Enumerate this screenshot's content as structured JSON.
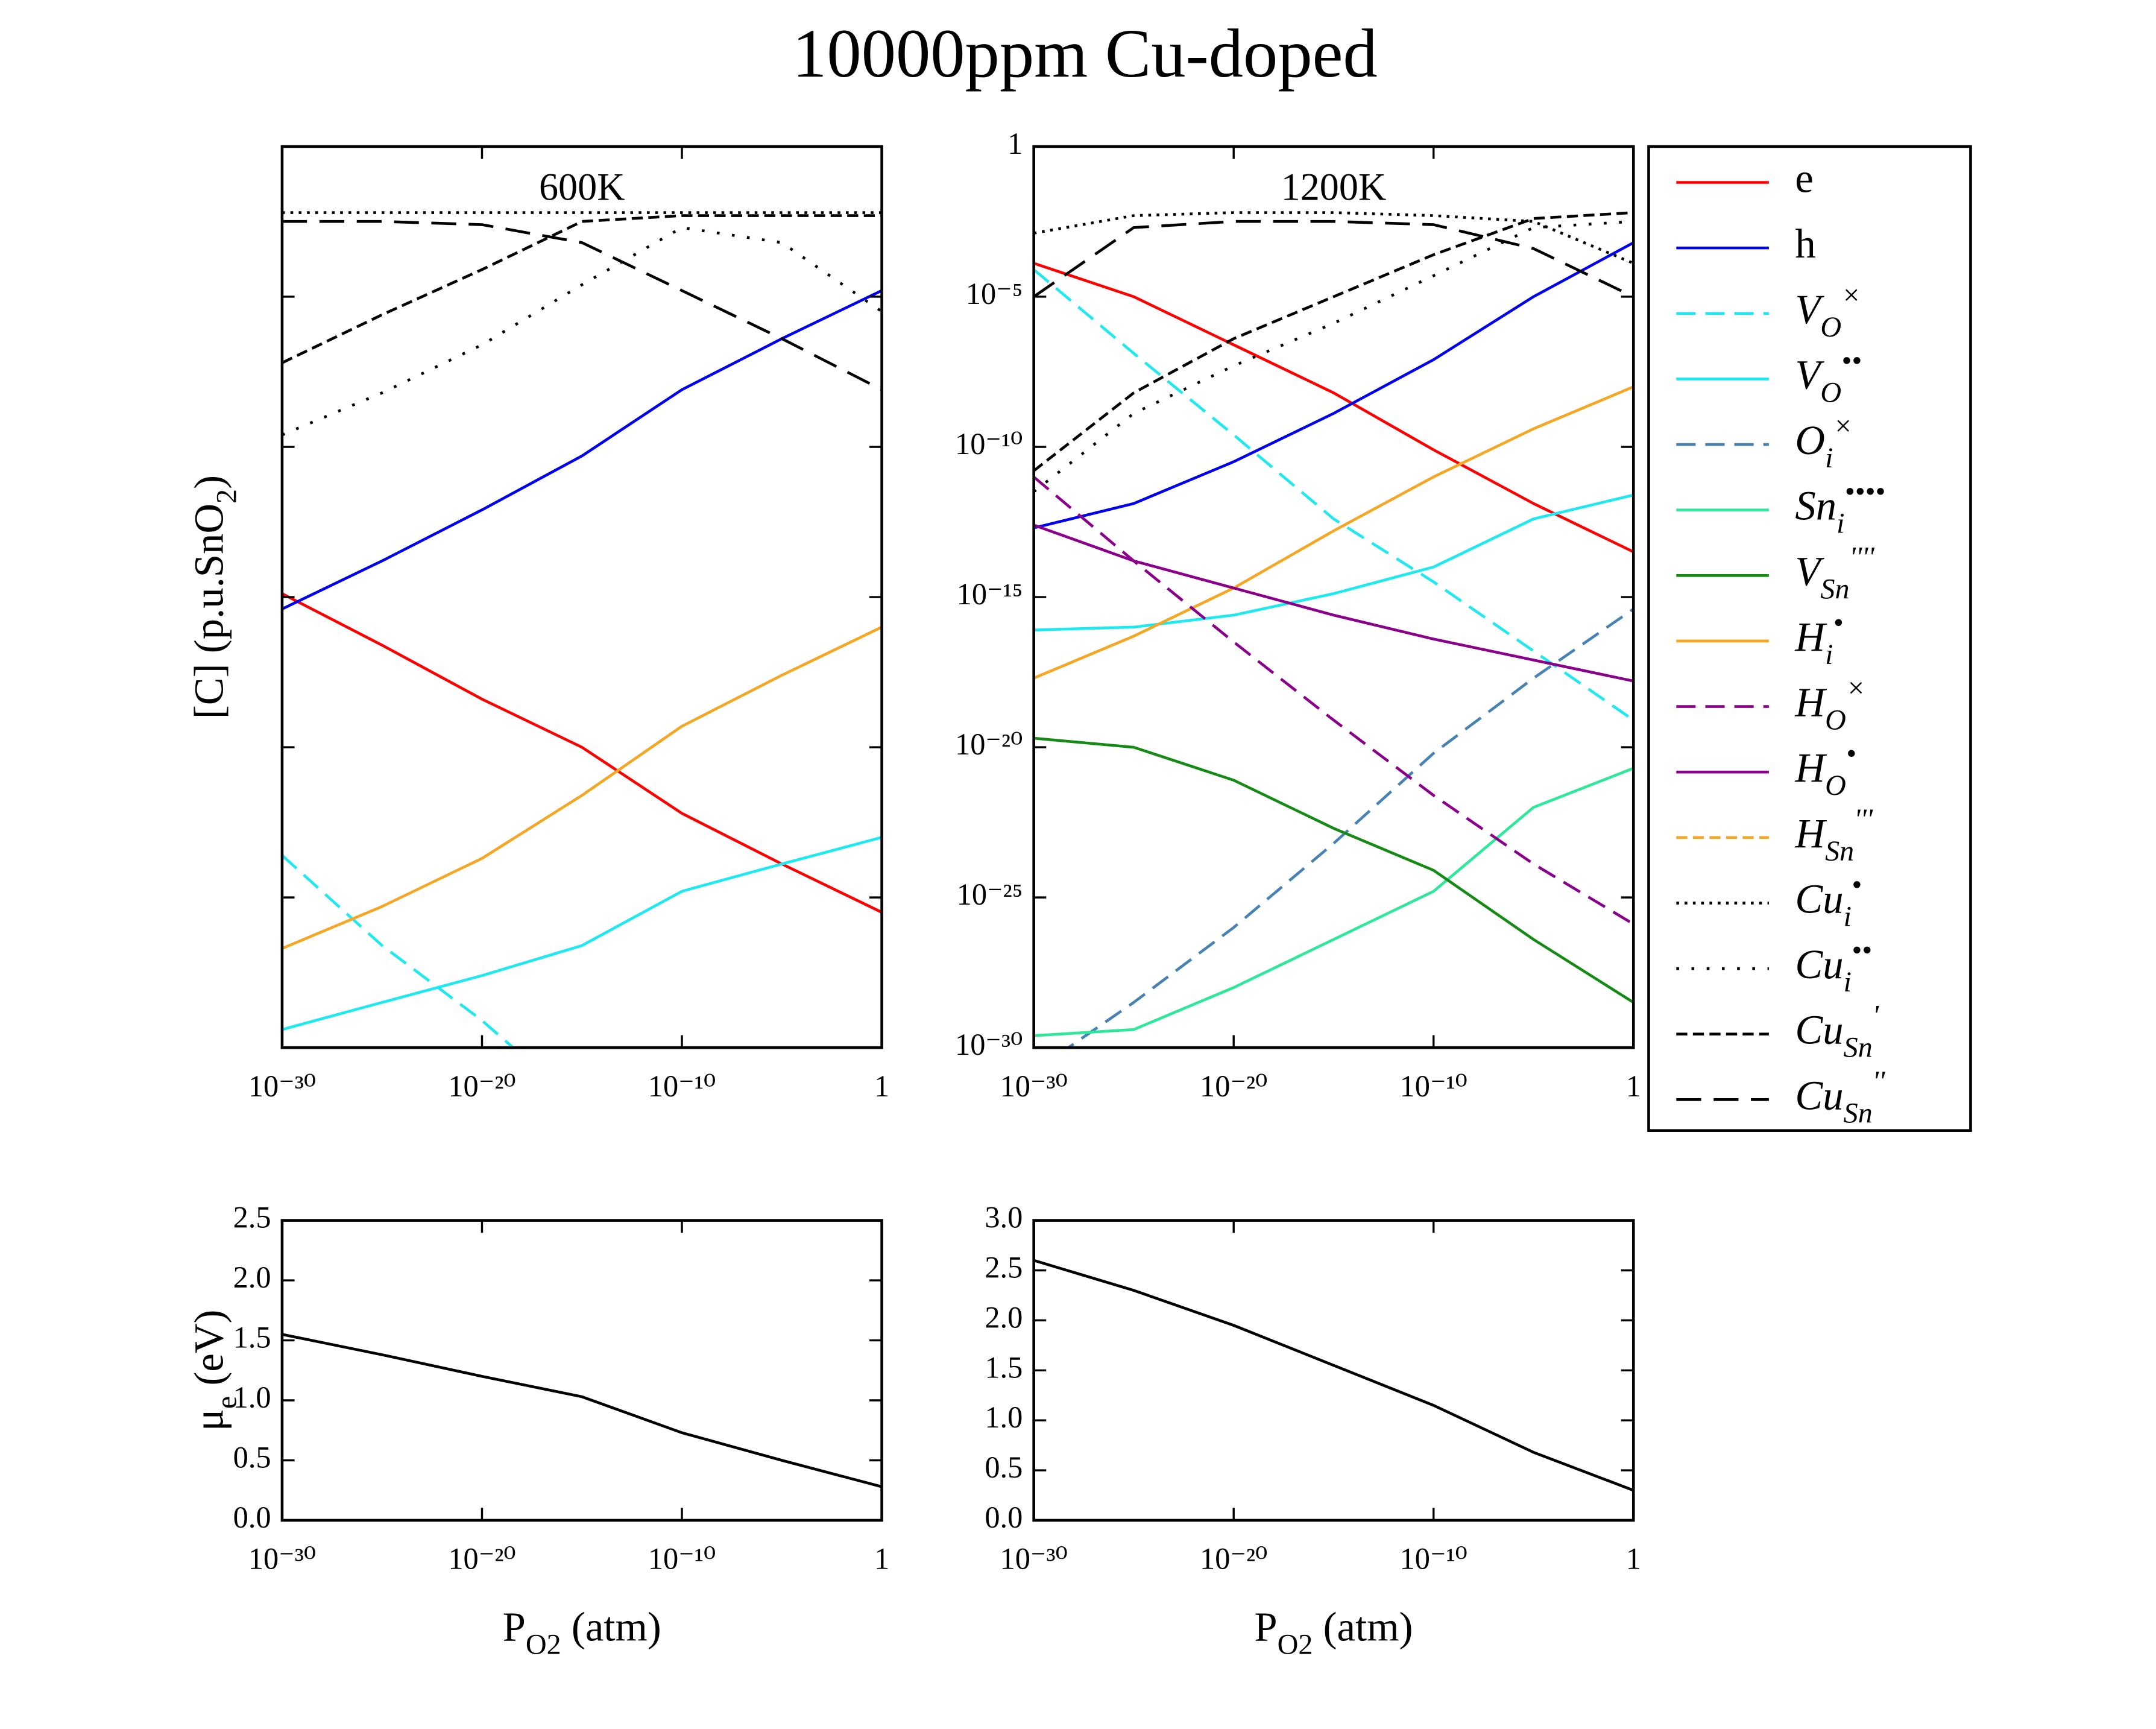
{
  "title": "10000ppm Cu-doped",
  "chart_data": [
    {
      "type": "line",
      "annotation": "600K",
      "ylabel": "[C] (p.u.SnO_{2})",
      "log_x": true,
      "log_y": true,
      "ytick_labels": false,
      "x": [
        1e-30,
        1e-25,
        1e-20,
        1e-15,
        1e-10,
        1e-05,
        1
      ],
      "xlim": [
        1e-30,
        1
      ],
      "xticks": [
        {
          "value": 1e-30,
          "label": "10⁻³⁰"
        },
        {
          "value": 1e-20,
          "label": "10⁻²⁰"
        },
        {
          "value": 1e-10,
          "label": "10⁻¹⁰"
        },
        1
      ],
      "ylim": [
        1e-30,
        1
      ],
      "yticks": [
        1e-30,
        1e-25,
        1e-20,
        1e-15,
        1e-10,
        1e-05,
        1
      ],
      "series": [
        {
          "color": "#ff0000",
          "linestyle": "solid",
          "values": [
            1.3e-15,
            2.5e-17,
            4e-19,
            1e-20,
            6.3e-23,
            1.3e-24,
            3.2e-26
          ]
        },
        {
          "color": "#0000ee",
          "linestyle": "solid",
          "values": [
            4e-16,
            1.6e-14,
            8e-13,
            5e-11,
            8e-09,
            4e-07,
            1.6e-05
          ]
        },
        {
          "color": "#1ee8f0",
          "linestyle": "dashed",
          "values": [
            2.5e-24,
            2.5e-27,
            8e-30,
            1e-32,
            null,
            null,
            null
          ]
        },
        {
          "color": "#1ee8f0",
          "linestyle": "solid",
          "values": [
            4e-30,
            3.2e-29,
            2.5e-28,
            2.5e-27,
            1.6e-25,
            1.3e-24,
            1e-23
          ]
        },
        {
          "color": "#f5a623",
          "linestyle": "solid",
          "values": [
            2e-27,
            5e-26,
            2e-24,
            2.5e-22,
            5e-20,
            2.5e-18,
            1e-16
          ]
        },
        {
          "color": "#000000",
          "linestyle": "dotted",
          "values": [
            0.0063,
            0.0063,
            0.0063,
            0.0063,
            0.0063,
            0.0063,
            0.0063
          ]
        },
        {
          "color": "#000000",
          "linestyle": "sparse-dotted",
          "values": [
            2.5e-10,
            6.3e-09,
            2.5e-07,
            2.5e-05,
            0.002,
            0.00063,
            3.2e-06
          ]
        },
        {
          "color": "#000000",
          "linestyle": "densely-dashed",
          "values": [
            6.3e-08,
            2.5e-06,
            8e-05,
            0.0032,
            0.005,
            0.005,
            0.005
          ]
        },
        {
          "color": "#000000",
          "linestyle": "loosely-dashed",
          "values": [
            0.0032,
            0.0032,
            0.0025,
            0.00063,
            1.6e-05,
            4e-07,
            8e-09
          ]
        }
      ]
    },
    {
      "type": "line",
      "annotation": "1200K",
      "log_x": true,
      "log_y": true,
      "legend": "outside-right",
      "x": [
        1e-30,
        1e-25,
        1e-20,
        1e-15,
        1e-10,
        1e-05,
        1
      ],
      "xlim": [
        1e-30,
        1
      ],
      "xticks": [
        {
          "value": 1e-30,
          "label": "10⁻³⁰"
        },
        {
          "value": 1e-20,
          "label": "10⁻²⁰"
        },
        {
          "value": 1e-10,
          "label": "10⁻¹⁰"
        },
        1
      ],
      "ylim": [
        1e-30,
        1
      ],
      "yticks": [
        {
          "value": 1e-30,
          "label": "10⁻³⁰"
        },
        {
          "value": 1e-25,
          "label": "10⁻²⁵"
        },
        {
          "value": 1e-20,
          "label": "10⁻²⁰"
        },
        {
          "value": 1e-15,
          "label": "10⁻¹⁵"
        },
        {
          "value": 1e-10,
          "label": "10⁻¹⁰"
        },
        {
          "value": 1e-05,
          "label": "10⁻⁵"
        },
        1
      ],
      "series": [
        {
          "name": "e",
          "color": "#ff0000",
          "linestyle": "solid",
          "values": [
            0.00013,
            1e-05,
            2.5e-07,
            6.3e-09,
            8e-11,
            1.3e-12,
            3.2e-14
          ]
        },
        {
          "name": "h",
          "color": "#0000ee",
          "linestyle": "solid",
          "values": [
            2e-13,
            1.3e-12,
            3.2e-11,
            1.3e-09,
            8e-08,
            1e-05,
            0.00063
          ]
        },
        {
          "name": "V_{O}^{×}",
          "color": "#1ee8f0",
          "linestyle": "dashed",
          "values": [
            8e-05,
            1.3e-07,
            2.5e-10,
            4e-13,
            3.2e-15,
            1.6e-17,
            8e-20
          ]
        },
        {
          "name": "V_{O}^{••}",
          "color": "#1ee8f0",
          "linestyle": "solid",
          "values": [
            8e-17,
            1e-16,
            2.5e-16,
            1.3e-15,
            1e-14,
            4e-13,
            2.5e-12
          ]
        },
        {
          "name": "O_{i}^{×}",
          "color": "#4682b4",
          "linestyle": "dashed",
          "values": [
            1.6e-31,
            3.2e-29,
            1e-26,
            6.3e-24,
            6.3e-21,
            2e-18,
            4e-16
          ]
        },
        {
          "name": "Sn_{i}^{••••}",
          "color": "#2ee89a",
          "linestyle": "solid",
          "values": [
            2.5e-30,
            4e-30,
            1e-28,
            4e-27,
            1.6e-25,
            1e-22,
            2e-21
          ]
        },
        {
          "name": "V_{Sn}^{''''}",
          "color": "#158a15",
          "linestyle": "solid",
          "values": [
            2e-20,
            1e-20,
            8e-22,
            2e-23,
            8e-25,
            4e-27,
            3.2e-29
          ]
        },
        {
          "name": "H_{i}^{•}",
          "color": "#f5a623",
          "linestyle": "solid",
          "values": [
            2e-18,
            5e-17,
            2e-15,
            1.6e-13,
            1e-11,
            4e-10,
            1e-08
          ]
        },
        {
          "name": "H_{O}^{×}",
          "color": "#8b008b",
          "linestyle": "dashed",
          "values": [
            1e-11,
            1.6e-14,
            3.2e-17,
            8e-20,
            2.5e-22,
            1.3e-24,
            1.3e-26
          ]
        },
        {
          "name": "H_{O}^{•}",
          "color": "#8b008b",
          "linestyle": "solid",
          "values": [
            2.5e-13,
            1.6e-14,
            2e-15,
            2.5e-16,
            4e-17,
            8e-18,
            1.6e-18
          ]
        },
        {
          "name": "H_{Sn}^{'''}",
          "color": "#f5a623",
          "linestyle": "densely-dashed",
          "values": [
            null,
            null,
            null,
            null,
            null,
            null,
            null
          ]
        },
        {
          "name": "Cu_{i}^{•}",
          "color": "#000000",
          "linestyle": "dotted",
          "values": [
            0.0013,
            0.005,
            0.0063,
            0.0063,
            0.005,
            0.0032,
            0.00013
          ]
        },
        {
          "name": "Cu_{i}^{••}",
          "color": "#000000",
          "linestyle": "sparse-dotted",
          "values": [
            3.2e-12,
            1.3e-09,
            5e-08,
            1.3e-06,
            5e-05,
            0.002,
            0.0032
          ]
        },
        {
          "name": "Cu_{Sn}^{'}",
          "color": "#000000",
          "linestyle": "densely-dashed",
          "values": [
            1.6e-11,
            6.3e-09,
            4e-07,
            1e-05,
            0.00025,
            0.004,
            0.0063
          ]
        },
        {
          "name": "Cu_{Sn}^{''}",
          "color": "#000000",
          "linestyle": "loosely-dashed",
          "values": [
            1e-05,
            0.002,
            0.0032,
            0.0032,
            0.0025,
            0.0004,
            1e-05
          ]
        }
      ]
    },
    {
      "type": "line",
      "ylabel": "μ_{e} (eV)",
      "xlabel": "P_{O2} (atm)",
      "log_x": true,
      "x": [
        1e-30,
        1e-25,
        1e-20,
        1e-15,
        1e-10,
        1e-05,
        1
      ],
      "xlim": [
        1e-30,
        1
      ],
      "xticks": [
        {
          "value": 1e-30,
          "label": "10⁻³⁰"
        },
        {
          "value": 1e-20,
          "label": "10⁻²⁰"
        },
        {
          "value": 1e-10,
          "label": "10⁻¹⁰"
        },
        1
      ],
      "ylim": [
        0,
        2.5
      ],
      "yticks": [
        {
          "value": 0,
          "label": "0.0"
        },
        0.5,
        {
          "value": 1,
          "label": "1.0"
        },
        1.5,
        {
          "value": 2,
          "label": "2.0"
        },
        2.5
      ],
      "series": [
        {
          "color": "#000000",
          "linestyle": "solid",
          "values": [
            1.55,
            1.38,
            1.2,
            1.03,
            0.73,
            0.5,
            0.28
          ]
        }
      ]
    },
    {
      "type": "line",
      "xlabel": "P_{O2} (atm)",
      "log_x": true,
      "x": [
        1e-30,
        1e-25,
        1e-20,
        1e-15,
        1e-10,
        1e-05,
        1
      ],
      "xlim": [
        1e-30,
        1
      ],
      "xticks": [
        {
          "value": 1e-30,
          "label": "10⁻³⁰"
        },
        {
          "value": 1e-20,
          "label": "10⁻²⁰"
        },
        {
          "value": 1e-10,
          "label": "10⁻¹⁰"
        },
        1
      ],
      "ylim": [
        0,
        3
      ],
      "yticks": [
        {
          "value": 0,
          "label": "0.0"
        },
        0.5,
        {
          "value": 1,
          "label": "1.0"
        },
        1.5,
        {
          "value": 2,
          "label": "2.0"
        },
        2.5,
        {
          "value": 3,
          "label": "3.0"
        }
      ],
      "series": [
        {
          "color": "#000000",
          "linestyle": "solid",
          "values": [
            2.6,
            2.3,
            1.95,
            1.55,
            1.15,
            0.68,
            0.3
          ]
        }
      ]
    }
  ]
}
